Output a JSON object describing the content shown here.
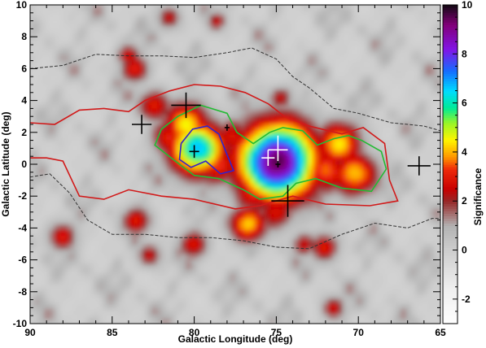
{
  "chart_data": {
    "type": "heatmap",
    "title": "",
    "xlabel": "Galactic Longitude (deg)",
    "ylabel": "Galactic Latitude (deg)",
    "colorbar_label": "Significance",
    "x_range": [
      90,
      65
    ],
    "y_range": [
      -10,
      10
    ],
    "x_ticks": [
      90,
      85,
      80,
      75,
      70,
      65
    ],
    "y_ticks": [
      10,
      8,
      6,
      4,
      2,
      0,
      -2,
      -4,
      -6,
      -8,
      -10
    ],
    "colorbar_range": [
      -3,
      10
    ],
    "colorbar_ticks": [
      10,
      8,
      6,
      4,
      2,
      0,
      -2
    ],
    "grid": false,
    "legend": "none",
    "hotspots": [
      {
        "l": 74.9,
        "b": 0.2,
        "sig": 9.5,
        "r": 1.7
      },
      {
        "l": 79.8,
        "b": 1.0,
        "sig": 6.8,
        "r": 1.2
      },
      {
        "l": 80.4,
        "b": 2.5,
        "sig": 4.5,
        "r": 1.0
      },
      {
        "l": 78.6,
        "b": 0.0,
        "sig": 3.2,
        "r": 1.0
      },
      {
        "l": 73.3,
        "b": 0.7,
        "sig": 3.8,
        "r": 1.1
      },
      {
        "l": 72.0,
        "b": -0.4,
        "sig": 3.6,
        "r": 1.0
      },
      {
        "l": 71.2,
        "b": 1.3,
        "sig": 4.3,
        "r": 1.0
      },
      {
        "l": 70.2,
        "b": -0.6,
        "sig": 4.2,
        "r": 1.0
      },
      {
        "l": 76.3,
        "b": -1.6,
        "sig": 3.5,
        "r": 1.0
      },
      {
        "l": 76.7,
        "b": -3.7,
        "sig": 4.2,
        "r": 0.8
      },
      {
        "l": 75.0,
        "b": -3.0,
        "sig": 3.0,
        "r": 0.8
      },
      {
        "l": 77.6,
        "b": 1.8,
        "sig": 2.8,
        "r": 0.8
      },
      {
        "l": 81.5,
        "b": 1.7,
        "sig": 3.0,
        "r": 0.8
      },
      {
        "l": 82.4,
        "b": 3.7,
        "sig": 3.1,
        "r": 0.7
      },
      {
        "l": 83.5,
        "b": -3.5,
        "sig": 3.0,
        "r": 0.6
      },
      {
        "l": 80.0,
        "b": -5.0,
        "sig": 3.0,
        "r": 0.6
      },
      {
        "l": 72.0,
        "b": -5.2,
        "sig": 3.1,
        "r": 0.6
      },
      {
        "l": 83.6,
        "b": 6.0,
        "sig": 3.1,
        "r": 0.6
      },
      {
        "l": 84.0,
        "b": 6.8,
        "sig": 2.8,
        "r": 0.5
      },
      {
        "l": 88.0,
        "b": -4.5,
        "sig": 2.9,
        "r": 0.6
      },
      {
        "l": 82.7,
        "b": -5.7,
        "sig": 2.6,
        "r": 0.5
      },
      {
        "l": 71.5,
        "b": -9.0,
        "sig": 2.7,
        "r": 0.5
      },
      {
        "l": 81.5,
        "b": 9.2,
        "sig": 2.6,
        "r": 0.5
      },
      {
        "l": 78.6,
        "b": 9.0,
        "sig": 2.4,
        "r": 0.4
      },
      {
        "l": 74.7,
        "b": 4.2,
        "sig": 2.6,
        "r": 0.5
      },
      {
        "l": 73.3,
        "b": -5.0,
        "sig": 2.6,
        "r": 0.5
      }
    ],
    "contours": [
      {
        "color": "#d11a1a",
        "points": [
          [
            90,
            2.6
          ],
          [
            88.5,
            2.5
          ],
          [
            87,
            3.4
          ],
          [
            85.5,
            3.5
          ],
          [
            84,
            3.3
          ],
          [
            83,
            4.0
          ],
          [
            81.5,
            4.6
          ],
          [
            80,
            5.0
          ],
          [
            78.4,
            4.9
          ],
          [
            76.9,
            4.5
          ],
          [
            75.5,
            3.8
          ],
          [
            74.5,
            3.0
          ],
          [
            73,
            2.4
          ],
          [
            71,
            1.9
          ],
          [
            69.7,
            2.3
          ],
          [
            68.4,
            1.3
          ],
          [
            68.1,
            -1.0
          ],
          [
            67.6,
            -2.3
          ],
          [
            69.3,
            -2.6
          ],
          [
            72,
            -2.5
          ],
          [
            74,
            -2.0
          ],
          [
            76,
            -2.6
          ],
          [
            77.5,
            -2.8
          ],
          [
            80,
            -2.2
          ],
          [
            82,
            -2.0
          ],
          [
            84,
            -1.6
          ],
          [
            85.5,
            -2.2
          ],
          [
            87,
            -2.0
          ],
          [
            88,
            0.2
          ],
          [
            89,
            0.4
          ],
          [
            90,
            0.4
          ]
        ]
      },
      {
        "color": "#22bb33",
        "points": [
          [
            82.0,
            2.2
          ],
          [
            81.0,
            3.0
          ],
          [
            79.6,
            3.7
          ],
          [
            78.0,
            3.2
          ],
          [
            77.4,
            2.0
          ],
          [
            76.4,
            1.3
          ],
          [
            75.4,
            2.0
          ],
          [
            74.6,
            2.3
          ],
          [
            73.4,
            2.1
          ],
          [
            72.5,
            1.2
          ],
          [
            71.5,
            1.6
          ],
          [
            70.6,
            1.8
          ],
          [
            69.8,
            1.5
          ],
          [
            68.6,
            0.8
          ],
          [
            68.3,
            -0.3
          ],
          [
            69.2,
            -1.7
          ],
          [
            71,
            -1.5
          ],
          [
            72.6,
            -0.9
          ],
          [
            73.8,
            -1.2
          ],
          [
            74.6,
            -2.0
          ],
          [
            76,
            -2.2
          ],
          [
            77,
            -1.6
          ],
          [
            78.5,
            -0.9
          ],
          [
            80,
            -0.7
          ],
          [
            81.4,
            0.4
          ],
          [
            82.4,
            1.2
          ],
          [
            82.0,
            2.2
          ]
        ]
      },
      {
        "color": "#3322cc",
        "points": [
          [
            80.8,
            1.3
          ],
          [
            80.1,
            2.2
          ],
          [
            79.2,
            2.4
          ],
          [
            78.5,
            1.9
          ],
          [
            78.0,
            0.6
          ],
          [
            77.6,
            -0.4
          ],
          [
            78.4,
            -0.6
          ],
          [
            79.3,
            0.2
          ],
          [
            80.2,
            -0.2
          ],
          [
            80.9,
            0.3
          ],
          [
            80.8,
            1.3
          ]
        ]
      },
      {
        "color": "#333333",
        "dashed": true,
        "points": [
          [
            90,
            6.0
          ],
          [
            88,
            6.2
          ],
          [
            86,
            6.9
          ],
          [
            84,
            6.8
          ],
          [
            82,
            6.8
          ],
          [
            80,
            6.7
          ],
          [
            78,
            7.0
          ],
          [
            76.5,
            7.3
          ],
          [
            75,
            6.6
          ],
          [
            74,
            5.5
          ],
          [
            73,
            4.8
          ],
          [
            71.5,
            3.5
          ],
          [
            70,
            3.2
          ],
          [
            68,
            2.6
          ],
          [
            66,
            2.4
          ],
          [
            65,
            2.1
          ]
        ]
      },
      {
        "color": "#333333",
        "dashed": true,
        "points": [
          [
            90,
            -0.8
          ],
          [
            88.8,
            -0.6
          ],
          [
            87.6,
            -1.8
          ],
          [
            86.5,
            -3.5
          ],
          [
            85,
            -4.4
          ],
          [
            83,
            -4.4
          ],
          [
            81,
            -4.6
          ],
          [
            79,
            -4.6
          ],
          [
            77,
            -4.8
          ],
          [
            75,
            -5.2
          ],
          [
            73,
            -5.3
          ],
          [
            71,
            -4.4
          ],
          [
            69,
            -3.7
          ],
          [
            67,
            -4.0
          ],
          [
            65.5,
            -3.4
          ],
          [
            65,
            -3.4
          ]
        ]
      }
    ],
    "markers": [
      {
        "l": 83.2,
        "b": 2.5,
        "color": "#000000",
        "dx": 0.6,
        "dy": 0.6
      },
      {
        "l": 80.5,
        "b": 3.7,
        "color": "#000000",
        "dx": 0.9,
        "dy": 0.8
      },
      {
        "l": 80.0,
        "b": 0.8,
        "color": "#000000",
        "dx": 0.3,
        "dy": 0.4
      },
      {
        "l": 74.3,
        "b": -2.3,
        "color": "#000000",
        "dx": 1.0,
        "dy": 1.0
      },
      {
        "l": 66.3,
        "b": -0.1,
        "color": "#000000",
        "dx": 0.7,
        "dy": 0.6
      },
      {
        "l": 74.9,
        "b": 0.9,
        "color": "#ffffff",
        "dx": 0.6,
        "dy": 0.9
      },
      {
        "l": 75.5,
        "b": 0.4,
        "color": "#ffffff",
        "dx": 0.4,
        "dy": 0.5
      },
      {
        "l": 74.9,
        "b": 0.0,
        "color": "#000000",
        "dx": 0.15,
        "dy": 0.2
      },
      {
        "l": 78.0,
        "b": 2.3,
        "color": "#000000",
        "dx": 0.15,
        "dy": 0.2
      }
    ]
  }
}
